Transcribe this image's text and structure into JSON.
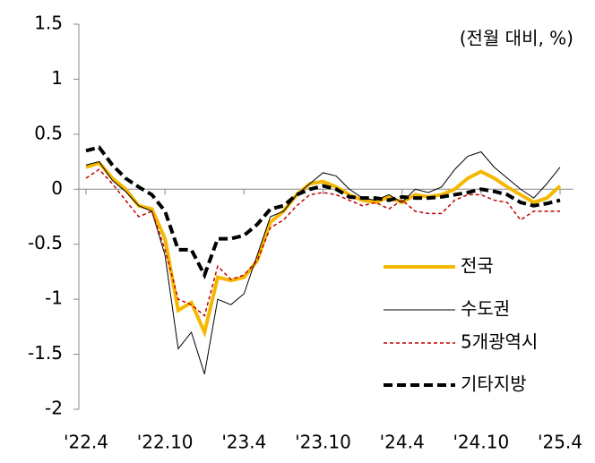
{
  "chart_data": {
    "type": "line",
    "annotation": "(전월 대비, %)",
    "categories": [
      "'22.4",
      null,
      null,
      null,
      null,
      null,
      "'22.10",
      null,
      null,
      null,
      null,
      null,
      "'23.4",
      null,
      null,
      null,
      null,
      null,
      "'23.10",
      null,
      null,
      null,
      null,
      null,
      "'24.4",
      null,
      null,
      null,
      null,
      null,
      "'24.10",
      null,
      null,
      null,
      null,
      null,
      "'25.4"
    ],
    "series": [
      {
        "name": "전국",
        "color": "#f5b800",
        "style": "solid",
        "width": 4,
        "values": [
          0.2,
          0.24,
          0.1,
          0.0,
          -0.15,
          -0.18,
          -0.45,
          -1.1,
          -1.03,
          -1.3,
          -0.8,
          -0.83,
          -0.8,
          -0.65,
          -0.3,
          -0.2,
          -0.05,
          0.05,
          0.07,
          0.02,
          -0.05,
          -0.1,
          -0.12,
          -0.07,
          -0.12,
          -0.05,
          -0.07,
          -0.05,
          0.0,
          0.1,
          0.16,
          0.1,
          0.02,
          -0.05,
          -0.12,
          -0.08,
          0.03
        ]
      },
      {
        "name": "수도권",
        "color": "#000000",
        "style": "solid",
        "width": 1,
        "values": [
          0.22,
          0.25,
          0.08,
          -0.02,
          -0.15,
          -0.2,
          -0.6,
          -1.45,
          -1.3,
          -1.68,
          -1.0,
          -1.05,
          -0.95,
          -0.6,
          -0.25,
          -0.2,
          -0.05,
          0.05,
          0.15,
          0.12,
          0.0,
          -0.08,
          -0.1,
          -0.05,
          -0.12,
          0.0,
          -0.03,
          0.02,
          0.18,
          0.3,
          0.34,
          0.2,
          0.1,
          0.0,
          -0.08,
          0.05,
          0.2
        ]
      },
      {
        "name": "5개광역시",
        "color": "#c00000",
        "style": "dashed",
        "width": 1.5,
        "values": [
          0.1,
          0.18,
          0.05,
          -0.1,
          -0.25,
          -0.2,
          -0.55,
          -1.0,
          -1.05,
          -1.15,
          -0.7,
          -0.82,
          -0.78,
          -0.65,
          -0.35,
          -0.28,
          -0.15,
          -0.05,
          -0.03,
          -0.05,
          -0.1,
          -0.15,
          -0.12,
          -0.18,
          -0.1,
          -0.2,
          -0.22,
          -0.22,
          -0.1,
          -0.05,
          -0.05,
          -0.1,
          -0.12,
          -0.28,
          -0.2,
          -0.2,
          -0.2
        ]
      },
      {
        "name": "기타지방",
        "color": "#000000",
        "style": "dashed",
        "width": 4,
        "values": [
          0.35,
          0.38,
          0.22,
          0.1,
          0.02,
          -0.05,
          -0.2,
          -0.55,
          -0.55,
          -0.78,
          -0.45,
          -0.45,
          -0.42,
          -0.32,
          -0.18,
          -0.15,
          -0.05,
          0.0,
          0.03,
          0.0,
          -0.07,
          -0.08,
          -0.08,
          -0.1,
          -0.07,
          -0.08,
          -0.08,
          -0.07,
          -0.05,
          -0.03,
          0.0,
          -0.02,
          -0.05,
          -0.12,
          -0.15,
          -0.13,
          -0.1
        ]
      }
    ],
    "ylim": [
      -2,
      1.5
    ],
    "yticks": [
      1.5,
      1,
      0.5,
      0,
      -0.5,
      -1,
      -1.5,
      -2
    ],
    "grid": false,
    "legend": "lower right"
  }
}
